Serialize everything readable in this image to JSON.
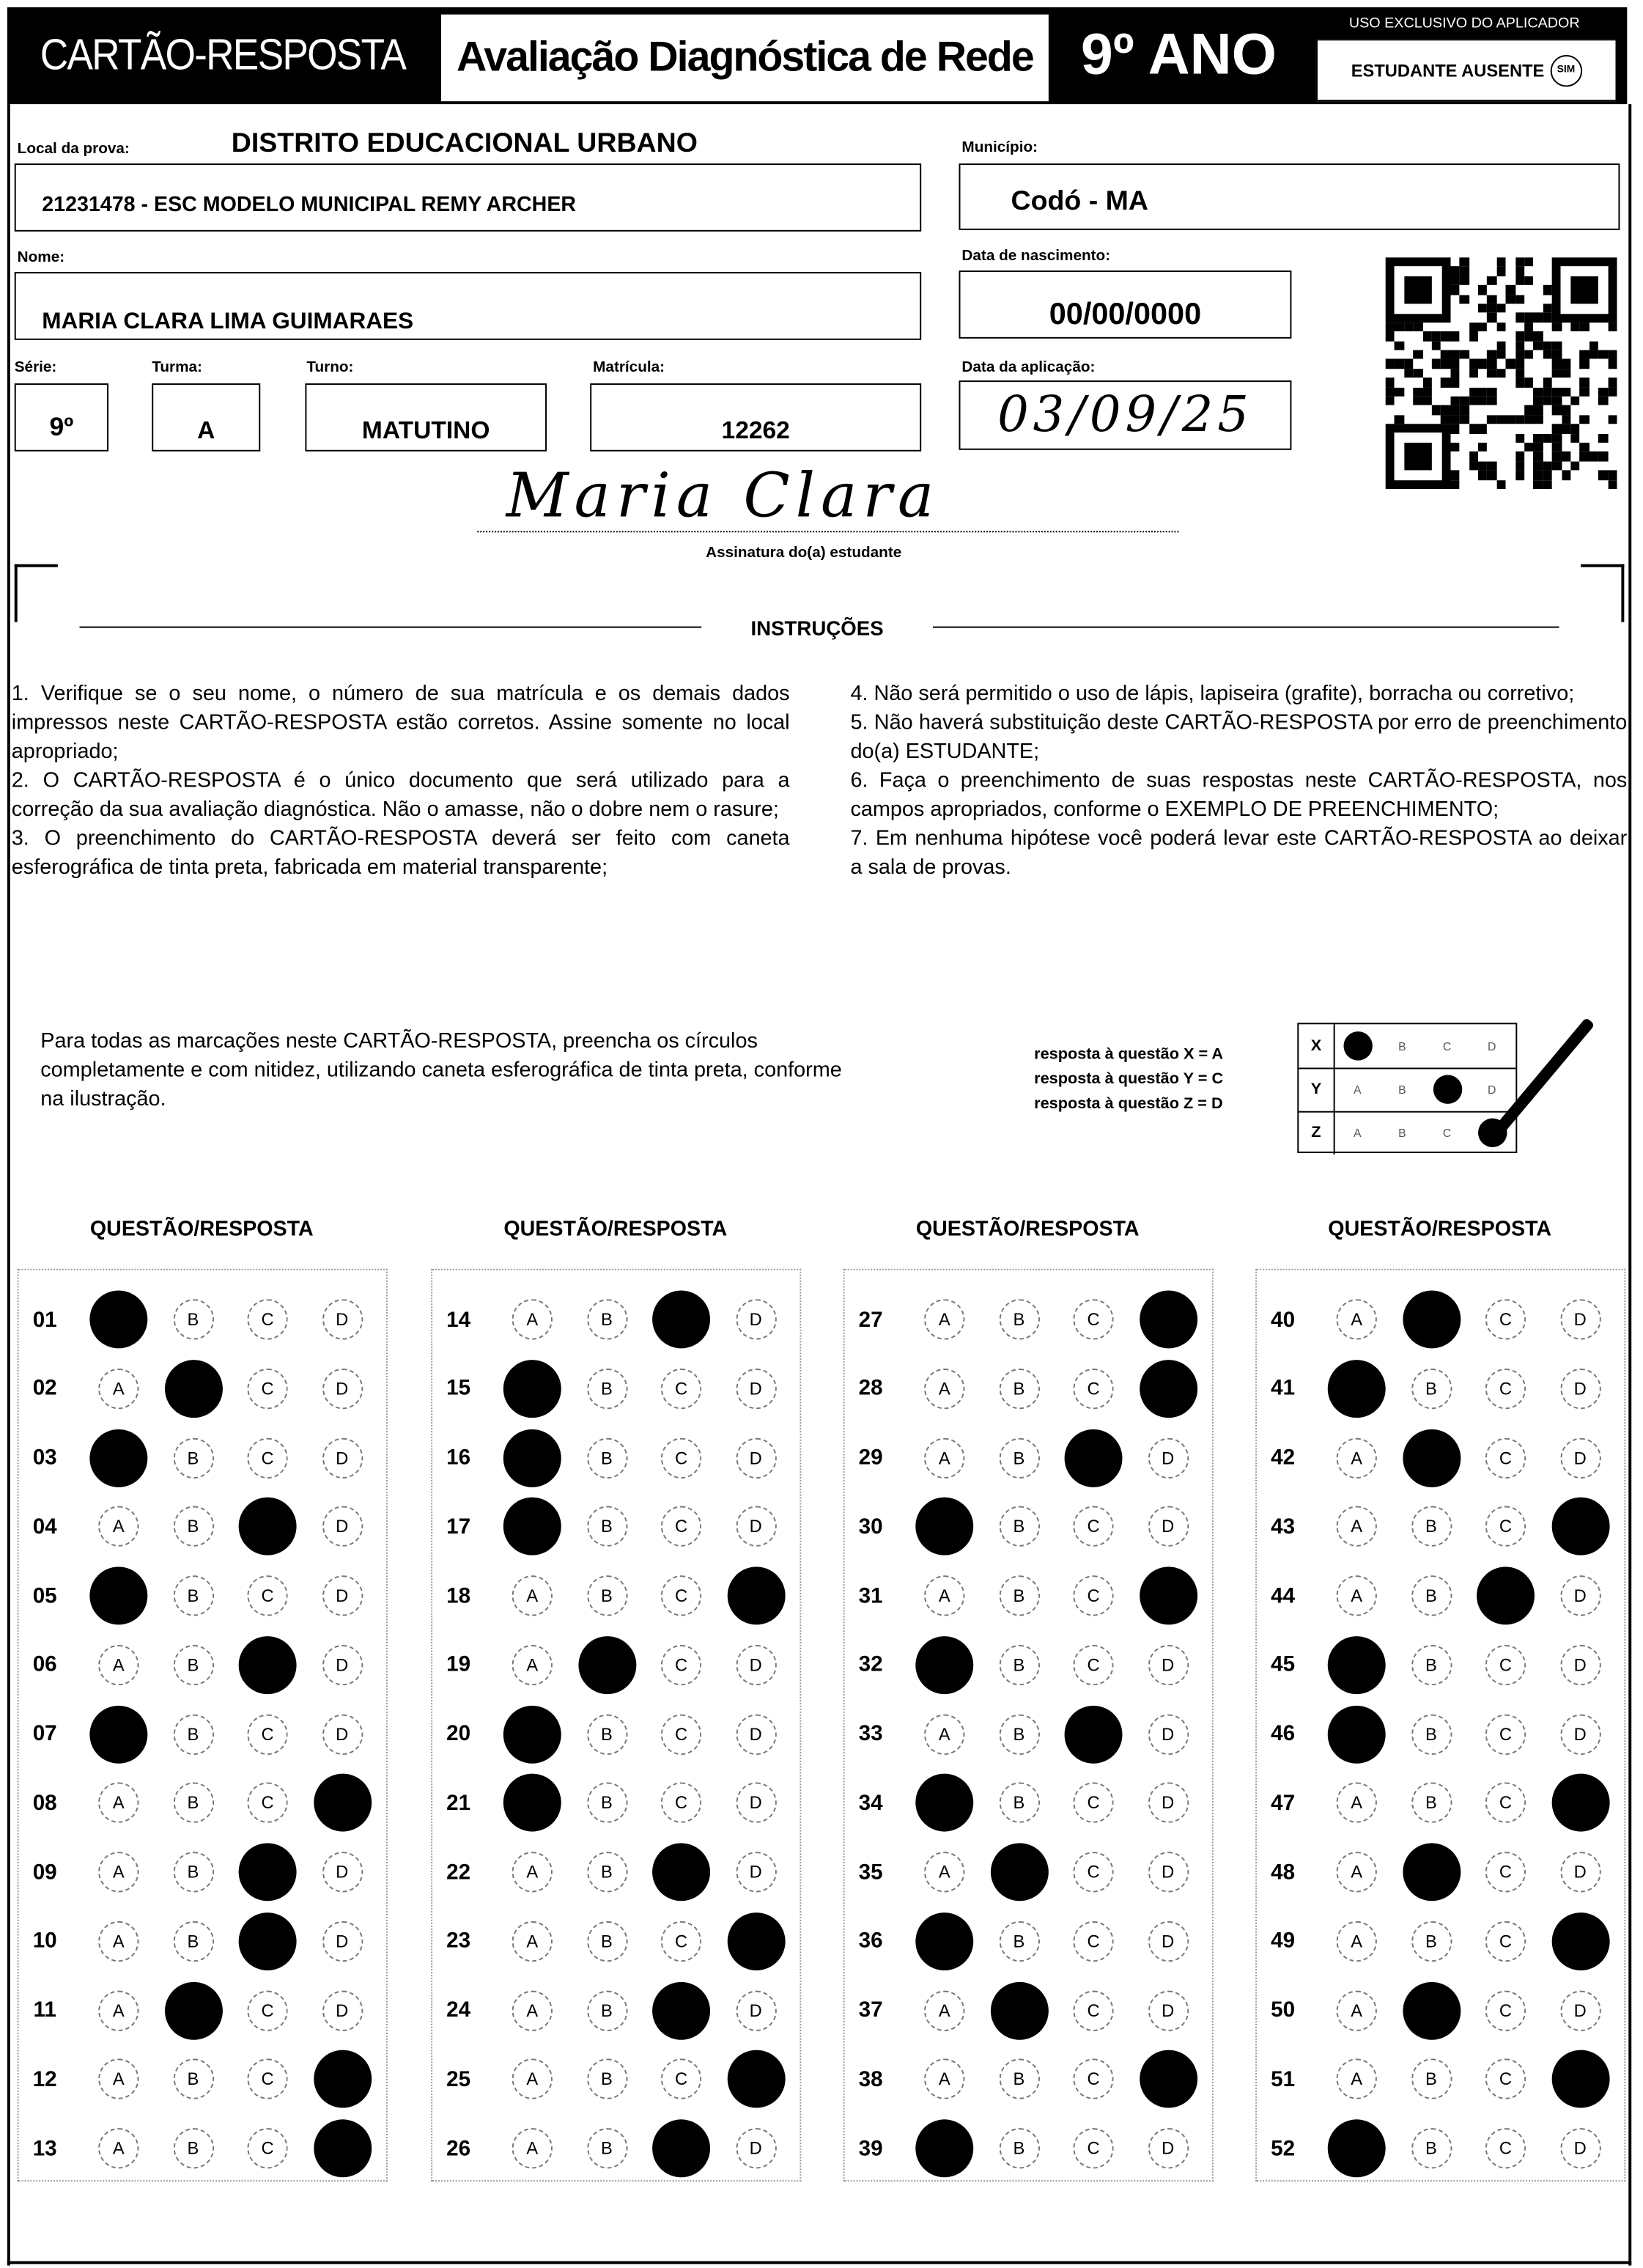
{
  "header": {
    "title": "CARTÃO-RESPOSTA",
    "assessment": "Avaliação Diagnóstica de Rede",
    "grade": "9º ANO",
    "applicator_note": "USO EXCLUSIVO DO APLICADOR",
    "absent_label": "ESTUDANTE AUSENTE",
    "absent_option": "SIM"
  },
  "fields": {
    "local_label": "Local da prova:",
    "local_value": "DISTRITO EDUCACIONAL URBANO",
    "school_value": "21231478 - ESC MODELO MUNICIPAL REMY ARCHER",
    "municipio_label": "Município:",
    "municipio_value": "Codó - MA",
    "nome_label": "Nome:",
    "nome_value": "MARIA CLARA LIMA GUIMARAES",
    "nascimento_label": "Data de nascimento:",
    "nascimento_value": "00/00/0000",
    "serie_label": "Série:",
    "serie_value": "9º",
    "turma_label": "Turma:",
    "turma_value": "A",
    "turno_label": "Turno:",
    "turno_value": "MATUTINO",
    "matricula_label": "Matrícula:",
    "matricula_value": "12262",
    "aplicacao_label": "Data da aplicação:",
    "aplicacao_value": "03/09/25"
  },
  "signature": {
    "text": "Maria Clara",
    "label": "Assinatura do(a) estudante"
  },
  "instructions": {
    "title": "INSTRUÇÕES",
    "items": [
      "1. Verifique se o seu nome, o número de sua matrícula e os demais dados impressos neste CARTÃO-RESPOSTA estão corretos. Assine somente no local apropriado;",
      "2. O CARTÃO-RESPOSTA é o único documento que será utilizado para a correção da sua avaliação diagnóstica. Não o amasse, não o dobre nem o rasure;",
      "3. O preenchimento do CARTÃO-RESPOSTA deverá ser feito com caneta esferográfica de tinta preta, fabricada em material transparente;",
      "4. Não será permitido o uso de lápis, lapiseira (grafite), borracha ou corretivo;",
      "5. Não haverá substituição deste CARTÃO-RESPOSTA por erro de preenchimento do(a) ESTUDANTE;",
      "6. Faça o preenchimento de suas respostas neste CARTÃO-RESPOSTA, nos campos apropriados, conforme o EXEMPLO DE PREENCHIMENTO;",
      "7. Em nenhuma hipótese você poderá levar este CARTÃO-RESPOSTA ao deixar a sala de provas."
    ]
  },
  "example": {
    "text": "Para todas as marcações neste CARTÃO-RESPOSTA, preencha os círculos completamente e com nitidez, utilizando caneta esferográfica de tinta preta, conforme na ilustração.",
    "legend": [
      "resposta à questão X = A",
      "resposta à questão Y = C",
      "resposta à questão Z = D"
    ],
    "rows": [
      {
        "label": "X",
        "answer": "A"
      },
      {
        "label": "Y",
        "answer": "C"
      },
      {
        "label": "Z",
        "answer": "D"
      }
    ]
  },
  "answers": {
    "column_header": "QUESTÃO/RESPOSTA",
    "options": [
      "A",
      "B",
      "C",
      "D"
    ],
    "questions": [
      {
        "number": "01",
        "answer": "A"
      },
      {
        "number": "02",
        "answer": "B"
      },
      {
        "number": "03",
        "answer": "A"
      },
      {
        "number": "04",
        "answer": "C"
      },
      {
        "number": "05",
        "answer": "A"
      },
      {
        "number": "06",
        "answer": "C"
      },
      {
        "number": "07",
        "answer": "A"
      },
      {
        "number": "08",
        "answer": "D"
      },
      {
        "number": "09",
        "answer": "C"
      },
      {
        "number": "10",
        "answer": "C"
      },
      {
        "number": "11",
        "answer": "B"
      },
      {
        "number": "12",
        "answer": "D"
      },
      {
        "number": "13",
        "answer": "D"
      },
      {
        "number": "14",
        "answer": "C"
      },
      {
        "number": "15",
        "answer": "A"
      },
      {
        "number": "16",
        "answer": "A"
      },
      {
        "number": "17",
        "answer": "A"
      },
      {
        "number": "18",
        "answer": "D"
      },
      {
        "number": "19",
        "answer": "B"
      },
      {
        "number": "20",
        "answer": "A"
      },
      {
        "number": "21",
        "answer": "A"
      },
      {
        "number": "22",
        "answer": "C"
      },
      {
        "number": "23",
        "answer": "D"
      },
      {
        "number": "24",
        "answer": "C"
      },
      {
        "number": "25",
        "answer": "D"
      },
      {
        "number": "26",
        "answer": "C"
      },
      {
        "number": "27",
        "answer": "D"
      },
      {
        "number": "28",
        "answer": "D"
      },
      {
        "number": "29",
        "answer": "C"
      },
      {
        "number": "30",
        "answer": "A"
      },
      {
        "number": "31",
        "answer": "D"
      },
      {
        "number": "32",
        "answer": "A"
      },
      {
        "number": "33",
        "answer": "C"
      },
      {
        "number": "34",
        "answer": "A"
      },
      {
        "number": "35",
        "answer": "B"
      },
      {
        "number": "36",
        "answer": "A"
      },
      {
        "number": "37",
        "answer": "B"
      },
      {
        "number": "38",
        "answer": "D"
      },
      {
        "number": "39",
        "answer": "A"
      },
      {
        "number": "40",
        "answer": "B"
      },
      {
        "number": "41",
        "answer": "A"
      },
      {
        "number": "42",
        "answer": "B"
      },
      {
        "number": "43",
        "answer": "D"
      },
      {
        "number": "44",
        "answer": "C"
      },
      {
        "number": "45",
        "answer": "A"
      },
      {
        "number": "46",
        "answer": "A"
      },
      {
        "number": "47",
        "answer": "D"
      },
      {
        "number": "48",
        "answer": "B"
      },
      {
        "number": "49",
        "answer": "D"
      },
      {
        "number": "50",
        "answer": "B"
      },
      {
        "number": "51",
        "answer": "D"
      },
      {
        "number": "52",
        "answer": "A"
      }
    ]
  }
}
